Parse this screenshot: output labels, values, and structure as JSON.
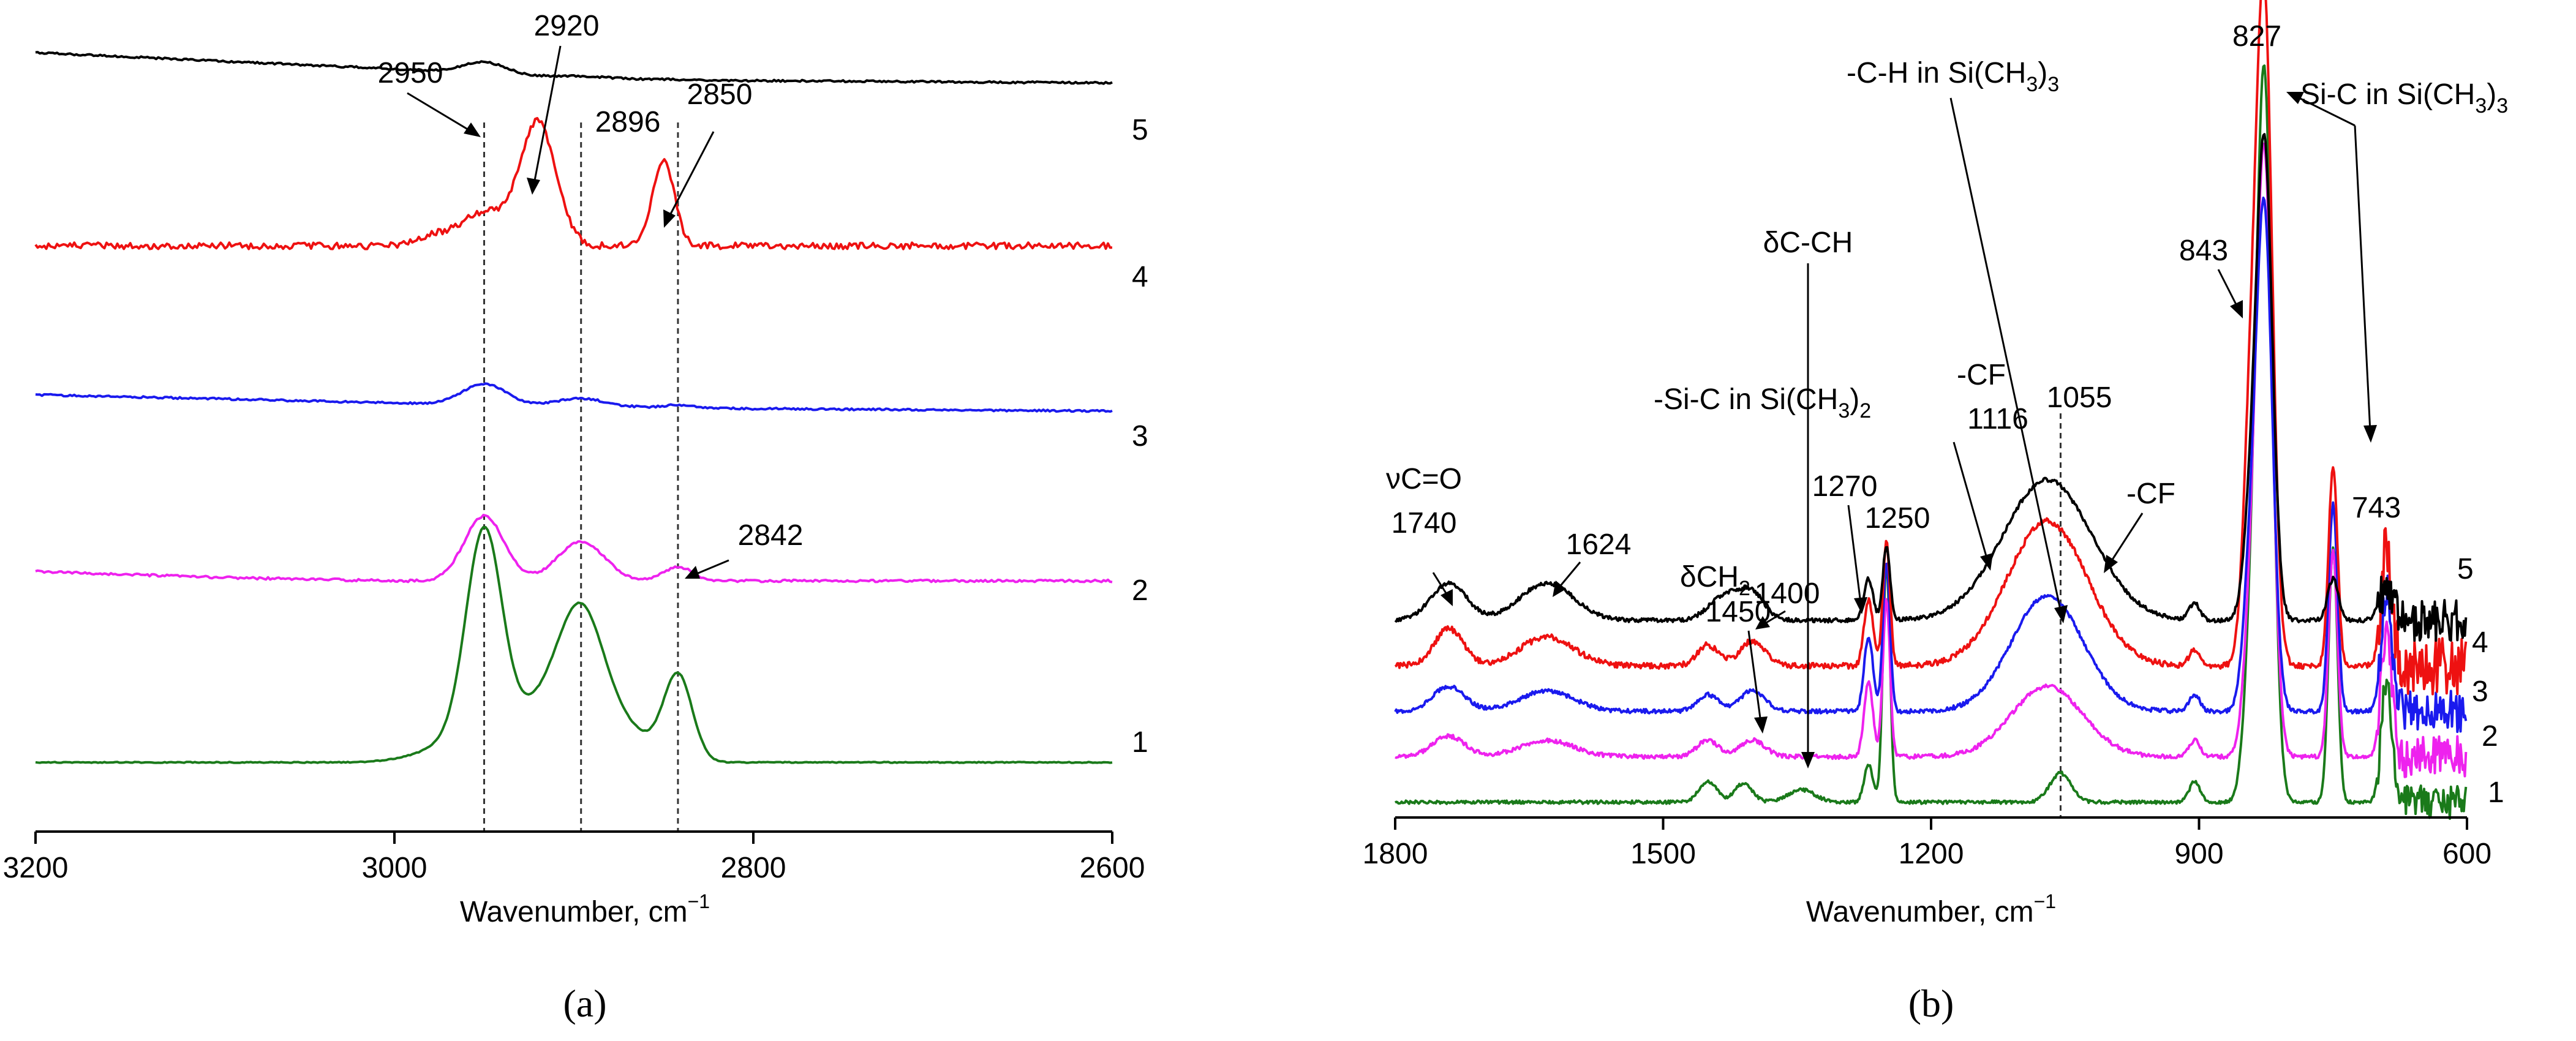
{
  "figure": {
    "panel_a_label": "(a)",
    "panel_b_label": "(b)"
  },
  "colors": {
    "1": "#1a7a1a",
    "2": "#ee22ee",
    "3": "#1a1aee",
    "4": "#ee1111",
    "5": "#000000"
  },
  "chart_data": [
    {
      "panel": "a",
      "type": "line",
      "title": "",
      "xlabel": "Wavenumber, cm",
      "xlabel_sup": "−1",
      "ylabel": "",
      "xlim": [
        3200,
        2600
      ],
      "xticks": [
        3200,
        3000,
        2800,
        2600
      ],
      "xtick_labels": [
        "3200",
        "3000",
        "2800",
        "2600"
      ],
      "reference_lines": [
        2950,
        2896,
        2842
      ],
      "series": [
        {
          "name": "1",
          "offset": 0.0,
          "noise": 0.002,
          "baseline": [
            [
              3200,
              0.0
            ],
            [
              2600,
              0.0
            ]
          ],
          "peaks": [
            [
              2950,
              0.9,
              10
            ],
            [
              2958,
              0.1,
              22
            ],
            [
              2920,
              0.18,
              14
            ],
            [
              2896,
              0.62,
              13
            ],
            [
              2870,
              0.12,
              14
            ],
            [
              2842,
              0.37,
              8
            ]
          ]
        },
        {
          "name": "2",
          "offset": 0.78,
          "noise": 0.005,
          "baseline": [
            [
              3200,
              0.04
            ],
            [
              3100,
              0.015
            ],
            [
              3000,
              0.0
            ],
            [
              2800,
              0.0
            ],
            [
              2600,
              0.0
            ]
          ],
          "peaks": [
            [
              2950,
              0.28,
              11
            ],
            [
              2896,
              0.17,
              13
            ],
            [
              2842,
              0.06,
              8
            ]
          ]
        },
        {
          "name": "3",
          "offset": 1.51,
          "noise": 0.004,
          "baseline": [
            [
              3200,
              0.07
            ],
            [
              3000,
              0.035
            ],
            [
              2900,
              0.02
            ],
            [
              2800,
              0.01
            ],
            [
              2600,
              0.0
            ]
          ],
          "peaks": [
            [
              2950,
              0.09,
              12
            ],
            [
              2896,
              0.035,
              13
            ],
            [
              2842,
              0.012,
              8
            ]
          ]
        },
        {
          "name": "4",
          "offset": 2.22,
          "noise": 0.014,
          "baseline": [
            [
              3200,
              0.0
            ],
            [
              2600,
              0.0
            ]
          ],
          "peaks": [
            [
              2950,
              0.14,
              13
            ],
            [
              2920,
              0.53,
              10
            ],
            [
              2850,
              0.37,
              6
            ],
            [
              2978,
              0.04,
              10
            ]
          ]
        },
        {
          "name": "5",
          "offset": 2.92,
          "noise": 0.004,
          "baseline": [
            [
              3200,
              0.13
            ],
            [
              3000,
              0.06
            ],
            [
              2950,
              0.04
            ],
            [
              2900,
              0.02
            ],
            [
              2800,
              0.01
            ],
            [
              2600,
              0.0
            ]
          ],
          "peaks": [
            [
              2950,
              0.05,
              12
            ],
            [
              2896,
              0.01,
              13
            ]
          ]
        }
      ],
      "annotations": [
        {
          "text": "2950",
          "x": 2950
        },
        {
          "text": "2920",
          "x": 2920
        },
        {
          "text": "2896",
          "x": 2896
        },
        {
          "text": "2850",
          "x": 2850
        },
        {
          "text": "2842",
          "x": 2842
        }
      ]
    },
    {
      "panel": "b",
      "type": "line",
      "title": "",
      "xlabel": "Wavenumber, cm",
      "xlabel_sup": "−1",
      "ylabel": "",
      "xlim": [
        1800,
        600
      ],
      "xticks": [
        1800,
        1500,
        1200,
        900,
        600
      ],
      "xtick_labels": [
        "1800",
        "1500",
        "1200",
        "900",
        "600"
      ],
      "reference_lines": [
        1055
      ],
      "series": [
        {
          "name": "1",
          "offset": 0.0,
          "noise": 0.004,
          "baseline": [
            [
              1800,
              0.0
            ],
            [
              600,
              0.0
            ]
          ],
          "peaks": [
            [
              1450,
              0.05,
              10
            ],
            [
              1410,
              0.045,
              10
            ],
            [
              1345,
              0.03,
              15
            ],
            [
              1270,
              0.09,
              5
            ],
            [
              1250,
              0.58,
              4
            ],
            [
              1055,
              0.07,
              12
            ],
            [
              905,
              0.05,
              6
            ],
            [
              827,
              1.75,
              9
            ],
            [
              843,
              0.25,
              8
            ],
            [
              750,
              0.62,
              5
            ],
            [
              690,
              0.3,
              6
            ]
          ]
        },
        {
          "name": "2",
          "offset": 0.11,
          "noise": 0.005,
          "baseline": [
            [
              1800,
              0.0
            ],
            [
              600,
              0.0
            ]
          ],
          "peaks": [
            [
              1740,
              0.05,
              18
            ],
            [
              1630,
              0.04,
              30
            ],
            [
              1450,
              0.04,
              12
            ],
            [
              1400,
              0.04,
              14
            ],
            [
              1270,
              0.18,
              5
            ],
            [
              1250,
              0.38,
              4
            ],
            [
              1070,
              0.17,
              40
            ],
            [
              905,
              0.04,
              6
            ],
            [
              827,
              1.45,
              9
            ],
            [
              843,
              0.25,
              8
            ],
            [
              750,
              0.5,
              5
            ],
            [
              690,
              0.3,
              6
            ]
          ]
        },
        {
          "name": "3",
          "offset": 0.22,
          "noise": 0.005,
          "baseline": [
            [
              1800,
              0.0
            ],
            [
              600,
              0.0
            ]
          ],
          "peaks": [
            [
              1740,
              0.06,
              18
            ],
            [
              1630,
              0.05,
              30
            ],
            [
              1450,
              0.04,
              12
            ],
            [
              1400,
              0.05,
              14
            ],
            [
              1270,
              0.18,
              5
            ],
            [
              1250,
              0.36,
              4
            ],
            [
              1070,
              0.28,
              40
            ],
            [
              905,
              0.04,
              6
            ],
            [
              827,
              1.2,
              9
            ],
            [
              843,
              0.28,
              8
            ],
            [
              750,
              0.5,
              5
            ],
            [
              690,
              0.3,
              6
            ]
          ]
        },
        {
          "name": "4",
          "offset": 0.33,
          "noise": 0.007,
          "baseline": [
            [
              1800,
              0.0
            ],
            [
              600,
              0.0
            ]
          ],
          "peaks": [
            [
              1740,
              0.09,
              16
            ],
            [
              1630,
              0.07,
              30
            ],
            [
              1450,
              0.05,
              12
            ],
            [
              1400,
              0.06,
              14
            ],
            [
              1270,
              0.16,
              5
            ],
            [
              1250,
              0.3,
              4
            ],
            [
              1070,
              0.35,
              45
            ],
            [
              905,
              0.04,
              6
            ],
            [
              827,
              1.6,
              9
            ],
            [
              843,
              0.5,
              8
            ],
            [
              750,
              0.48,
              5
            ],
            [
              690,
              0.3,
              6
            ]
          ]
        },
        {
          "name": "5",
          "offset": 0.44,
          "noise": 0.005,
          "baseline": [
            [
              1800,
              0.0
            ],
            [
              600,
              0.0
            ]
          ],
          "peaks": [
            [
              1740,
              0.09,
              20
            ],
            [
              1630,
              0.09,
              30
            ],
            [
              1430,
              0.06,
              18
            ],
            [
              1400,
              0.06,
              14
            ],
            [
              1270,
              0.1,
              5
            ],
            [
              1250,
              0.18,
              4
            ],
            [
              1070,
              0.34,
              50
            ],
            [
              905,
              0.04,
              6
            ],
            [
              827,
              1.15,
              9
            ],
            [
              843,
              0.2,
              8
            ],
            [
              750,
              0.1,
              6
            ],
            [
              690,
              0.08,
              8
            ]
          ]
        }
      ],
      "annotations": [
        {
          "text": "νC=O",
          "x": 1740
        },
        {
          "text": "1740",
          "x": 1740
        },
        {
          "text": "1624",
          "x": 1624
        },
        {
          "text": "δCH",
          "sub": "2",
          "x": 1430
        },
        {
          "text": "1450",
          "x": 1450
        },
        {
          "text": "1400",
          "x": 1400
        },
        {
          "text": "δC-CH",
          "x": 1345
        },
        {
          "text": "-Si-C in Si(CH",
          "sub": "3",
          "after": ")",
          "sub2": "2",
          "x": 1270
        },
        {
          "text": "1270",
          "x": 1270
        },
        {
          "text": "1250",
          "x": 1250
        },
        {
          "text": "-C-H in Si(CH",
          "sub": "3",
          "after": ")",
          "sub2": "3",
          "x": 1250
        },
        {
          "text": "-CF",
          "x": 1116
        },
        {
          "text": "1116",
          "x": 1116
        },
        {
          "text": "1055",
          "x": 1055
        },
        {
          "text": "-CF",
          "x": 1000
        },
        {
          "text": "843",
          "x": 843
        },
        {
          "text": "827",
          "x": 827
        },
        {
          "text": "-Si-C in Si(CH",
          "sub": "3",
          "after": ")",
          "sub2": "3",
          "x": 780
        },
        {
          "text": "743",
          "x": 743
        }
      ]
    }
  ]
}
